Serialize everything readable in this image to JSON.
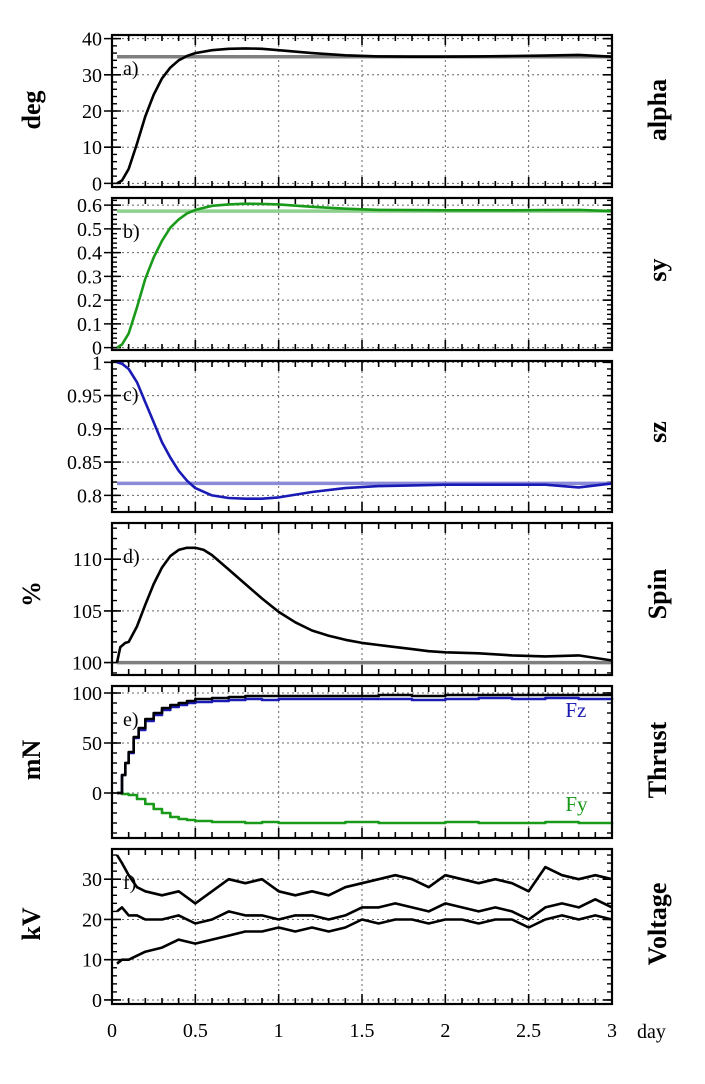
{
  "x_unit": "day",
  "colors": {
    "black": "#000000",
    "gray": "#7f7f7f",
    "green": "#1a9a1a",
    "light_green": "#8fd08f",
    "blue": "#1a1ab4",
    "light_blue": "#8a8ad8"
  },
  "chart_data": [
    {
      "type": "line",
      "panel_label": "a)",
      "ylabel": "deg",
      "right_label": "alpha",
      "xlim": [
        0,
        3
      ],
      "ylim": [
        -1,
        41
      ],
      "yticks": [
        0,
        10,
        20,
        30,
        40
      ],
      "ytick_labels": [
        "0",
        "10",
        "20",
        "30",
        "40"
      ],
      "xticks": [
        0,
        0.5,
        1,
        1.5,
        2,
        2.5,
        3
      ],
      "grid": true,
      "series": [
        {
          "role": "reference",
          "color": "#7f7f7f",
          "x": [
            0.03,
            3.0
          ],
          "y": [
            35,
            35
          ]
        },
        {
          "role": "actual",
          "color": "#000000",
          "x": [
            0.03,
            0.06,
            0.1,
            0.15,
            0.2,
            0.25,
            0.3,
            0.35,
            0.4,
            0.45,
            0.5,
            0.6,
            0.7,
            0.8,
            0.9,
            1.0,
            1.2,
            1.4,
            1.6,
            1.8,
            2.0,
            2.2,
            2.4,
            2.6,
            2.8,
            3.0
          ],
          "y": [
            0,
            0.8,
            4,
            11,
            18.5,
            24.5,
            29,
            32,
            34,
            35.2,
            36,
            36.8,
            37.2,
            37.3,
            37.2,
            36.8,
            36,
            35.4,
            35.1,
            35,
            35,
            35.1,
            35.2,
            35.3,
            35.5,
            35
          ]
        }
      ]
    },
    {
      "type": "line",
      "panel_label": "b)",
      "ylabel": "",
      "right_label": "sy",
      "xlim": [
        0,
        3
      ],
      "ylim": [
        -0.01,
        0.63
      ],
      "yticks": [
        0,
        0.1,
        0.2,
        0.3,
        0.4,
        0.5,
        0.6
      ],
      "ytick_labels": [
        "0",
        "0.1",
        "0.2",
        "0.3",
        "0.4",
        "0.5",
        "0.6"
      ],
      "xticks": [
        0,
        0.5,
        1,
        1.5,
        2,
        2.5,
        3
      ],
      "grid": true,
      "series": [
        {
          "role": "reference",
          "color": "#8fd08f",
          "x": [
            0.03,
            3.0
          ],
          "y": [
            0.575,
            0.575
          ]
        },
        {
          "role": "actual",
          "color": "#1a9a1a",
          "x": [
            0.03,
            0.06,
            0.1,
            0.15,
            0.2,
            0.25,
            0.3,
            0.35,
            0.4,
            0.45,
            0.5,
            0.6,
            0.7,
            0.8,
            0.9,
            1.0,
            1.2,
            1.4,
            1.6,
            1.8,
            2.0,
            2.2,
            2.4,
            2.6,
            2.8,
            3.0
          ],
          "y": [
            0,
            0.013,
            0.06,
            0.17,
            0.29,
            0.38,
            0.45,
            0.505,
            0.54,
            0.565,
            0.58,
            0.597,
            0.603,
            0.606,
            0.605,
            0.603,
            0.593,
            0.585,
            0.58,
            0.579,
            0.578,
            0.578,
            0.578,
            0.579,
            0.58,
            0.575
          ]
        }
      ]
    },
    {
      "type": "line",
      "panel_label": "c)",
      "ylabel": "",
      "right_label": "sz",
      "xlim": [
        0,
        3
      ],
      "ylim": [
        0.775,
        1.002
      ],
      "yticks": [
        0.8,
        0.85,
        0.9,
        0.95,
        1
      ],
      "ytick_labels": [
        "0.8",
        "0.85",
        "0.9",
        "0.95",
        "1"
      ],
      "xticks": [
        0,
        0.5,
        1,
        1.5,
        2,
        2.5,
        3
      ],
      "grid": true,
      "series": [
        {
          "role": "reference",
          "color": "#8a8ad8",
          "x": [
            0.03,
            3.0
          ],
          "y": [
            0.818,
            0.818
          ]
        },
        {
          "role": "actual",
          "color": "#1a1ab4",
          "x": [
            0.03,
            0.06,
            0.1,
            0.15,
            0.2,
            0.25,
            0.3,
            0.35,
            0.4,
            0.45,
            0.5,
            0.6,
            0.7,
            0.8,
            0.9,
            1.0,
            1.2,
            1.4,
            1.6,
            1.8,
            2.0,
            2.2,
            2.4,
            2.6,
            2.8,
            3.0
          ],
          "y": [
            1.0,
            0.998,
            0.99,
            0.97,
            0.94,
            0.91,
            0.88,
            0.857,
            0.837,
            0.822,
            0.811,
            0.8,
            0.796,
            0.795,
            0.795,
            0.797,
            0.805,
            0.811,
            0.814,
            0.815,
            0.816,
            0.816,
            0.816,
            0.816,
            0.812,
            0.818
          ]
        }
      ]
    },
    {
      "type": "line",
      "panel_label": "d)",
      "ylabel": "%",
      "right_label": "Spin",
      "xlim": [
        0,
        3
      ],
      "ylim": [
        98.8,
        113.5
      ],
      "yticks": [
        100,
        105,
        110
      ],
      "ytick_labels": [
        "100",
        "105",
        "110"
      ],
      "xticks": [
        0,
        0.5,
        1,
        1.5,
        2,
        2.5,
        3
      ],
      "grid": true,
      "series": [
        {
          "role": "reference",
          "color": "#7f7f7f",
          "x": [
            0.03,
            3.0
          ],
          "y": [
            100,
            100
          ]
        },
        {
          "role": "actual",
          "color": "#000000",
          "x": [
            0.03,
            0.05,
            0.08,
            0.1,
            0.15,
            0.2,
            0.25,
            0.3,
            0.35,
            0.4,
            0.45,
            0.5,
            0.55,
            0.6,
            0.7,
            0.8,
            0.9,
            1.0,
            1.1,
            1.2,
            1.3,
            1.4,
            1.5,
            1.6,
            1.7,
            1.8,
            1.9,
            2.0,
            2.2,
            2.4,
            2.6,
            2.8,
            3.0
          ],
          "y": [
            100,
            101.5,
            101.9,
            102.0,
            103.5,
            105.6,
            107.6,
            109.2,
            110.3,
            110.9,
            111.1,
            111.1,
            110.9,
            110.4,
            109.0,
            107.6,
            106.2,
            104.9,
            103.9,
            103.1,
            102.6,
            102.2,
            101.9,
            101.7,
            101.5,
            101.3,
            101.1,
            101.0,
            100.9,
            100.7,
            100.6,
            100.7,
            100.2
          ]
        }
      ]
    },
    {
      "type": "line",
      "panel_label": "e)",
      "ylabel": "mN",
      "right_label": "Thrust",
      "xlim": [
        0,
        3
      ],
      "ylim": [
        -45,
        107
      ],
      "yticks": [
        0,
        50,
        100
      ],
      "ytick_labels": [
        "0",
        "50",
        "100"
      ],
      "xticks": [
        0,
        0.5,
        1,
        1.5,
        2,
        2.5,
        3
      ],
      "grid": true,
      "series": [
        {
          "name": "Fz",
          "color": "#1a1ab4",
          "step": true,
          "x": [
            0.03,
            0.06,
            0.08,
            0.1,
            0.13,
            0.16,
            0.2,
            0.25,
            0.3,
            0.35,
            0.4,
            0.45,
            0.5,
            0.6,
            0.7,
            0.8,
            0.9,
            1.0,
            1.2,
            1.4,
            1.6,
            1.8,
            2.0,
            2.2,
            2.4,
            2.6,
            2.8,
            3.0
          ],
          "y": [
            0,
            18,
            30,
            40,
            55,
            63,
            72,
            78,
            83,
            86,
            88,
            90,
            91,
            92,
            93,
            94,
            93,
            94,
            94,
            94,
            94,
            93,
            94,
            95,
            94,
            95,
            94,
            95
          ]
        },
        {
          "name": "Fy",
          "color": "#1a9a1a",
          "step": true,
          "x": [
            0.03,
            0.06,
            0.1,
            0.15,
            0.2,
            0.25,
            0.3,
            0.35,
            0.4,
            0.45,
            0.5,
            0.6,
            0.7,
            0.8,
            0.9,
            1.0,
            1.2,
            1.4,
            1.6,
            1.8,
            2.0,
            2.2,
            2.4,
            2.6,
            2.8,
            3.0
          ],
          "y": [
            0,
            -1,
            -2,
            -6,
            -11,
            -16,
            -20,
            -24,
            -26,
            -27,
            -28,
            -29,
            -29,
            -30,
            -29,
            -30,
            -30,
            -29,
            -30,
            -30,
            -29,
            -30,
            -30,
            -29,
            -30,
            -29
          ]
        },
        {
          "name": "",
          "color": "#000000",
          "step": true,
          "x": [
            0.03,
            0.06,
            0.08,
            0.1,
            0.13,
            0.16,
            0.2,
            0.25,
            0.3,
            0.35,
            0.4,
            0.45,
            0.5,
            0.6,
            0.7,
            0.8,
            0.9,
            1.0,
            1.2,
            1.4,
            1.6,
            1.8,
            2.0,
            2.2,
            2.4,
            2.6,
            2.8,
            3.0
          ],
          "y": [
            0,
            18,
            30,
            41,
            56,
            65,
            74,
            80,
            85,
            88,
            90,
            92,
            94,
            95,
            96,
            97,
            97,
            97,
            97,
            97,
            98,
            97,
            98,
            98,
            98,
            98,
            98,
            98
          ]
        }
      ]
    },
    {
      "type": "line",
      "panel_label": "f)",
      "ylabel": "kV",
      "right_label": "Voltage",
      "xlim": [
        0,
        3
      ],
      "ylim": [
        -1,
        37.5
      ],
      "yticks": [
        0,
        10,
        20,
        30
      ],
      "ytick_labels": [
        "0",
        "10",
        "20",
        "30"
      ],
      "xticks": [
        0,
        0.5,
        1,
        1.5,
        2,
        2.5,
        3
      ],
      "grid": true,
      "series": [
        {
          "name": "",
          "color": "#000000",
          "x": [
            0.03,
            0.06,
            0.1,
            0.15,
            0.2,
            0.3,
            0.4,
            0.5,
            0.6,
            0.7,
            0.8,
            0.9,
            1.0,
            1.1,
            1.2,
            1.3,
            1.4,
            1.5,
            1.6,
            1.7,
            1.8,
            1.9,
            2.0,
            2.1,
            2.2,
            2.3,
            2.4,
            2.5,
            2.6,
            2.7,
            2.8,
            2.9,
            3.0
          ],
          "y": [
            36,
            34,
            31,
            28,
            27,
            26,
            27,
            24,
            27,
            30,
            29,
            30,
            27,
            26,
            27,
            26,
            28,
            29,
            30,
            31,
            30,
            28,
            31,
            30,
            29,
            30,
            29,
            27,
            33,
            31,
            30,
            31,
            30
          ]
        },
        {
          "name": "",
          "color": "#000000",
          "x": [
            0.03,
            0.06,
            0.1,
            0.15,
            0.2,
            0.3,
            0.4,
            0.5,
            0.6,
            0.7,
            0.8,
            0.9,
            1.0,
            1.1,
            1.2,
            1.3,
            1.4,
            1.5,
            1.6,
            1.7,
            1.8,
            1.9,
            2.0,
            2.1,
            2.2,
            2.3,
            2.4,
            2.5,
            2.6,
            2.7,
            2.8,
            2.9,
            3.0
          ],
          "y": [
            22,
            23,
            21,
            21,
            20,
            20,
            21,
            19,
            20,
            22,
            21,
            21,
            20,
            21,
            21,
            20,
            21,
            23,
            23,
            24,
            23,
            22,
            24,
            23,
            22,
            23,
            22,
            20,
            23,
            24,
            23,
            25,
            23
          ]
        },
        {
          "name": "",
          "color": "#000000",
          "x": [
            0.03,
            0.06,
            0.1,
            0.15,
            0.2,
            0.3,
            0.4,
            0.5,
            0.6,
            0.7,
            0.8,
            0.9,
            1.0,
            1.1,
            1.2,
            1.3,
            1.4,
            1.5,
            1.6,
            1.7,
            1.8,
            1.9,
            2.0,
            2.1,
            2.2,
            2.3,
            2.4,
            2.5,
            2.6,
            2.7,
            2.8,
            2.9,
            3.0
          ],
          "y": [
            9,
            10,
            10,
            11,
            12,
            13,
            15,
            14,
            15,
            16,
            17,
            17,
            18,
            17,
            18,
            17,
            18,
            20,
            19,
            20,
            20,
            19,
            20,
            20,
            19,
            20,
            20,
            18,
            20,
            21,
            20,
            21,
            20
          ]
        }
      ]
    }
  ],
  "annotations": [
    {
      "panel": 4,
      "text": "Fz",
      "x": 2.72,
      "y": 76,
      "color": "#1a1ab4"
    },
    {
      "panel": 4,
      "text": "Fy",
      "x": 2.72,
      "y": -18,
      "color": "#1a9a1a"
    }
  ],
  "xtick_labels": [
    "0",
    "0.5",
    "1",
    "1.5",
    "2",
    "2.5",
    "3"
  ]
}
